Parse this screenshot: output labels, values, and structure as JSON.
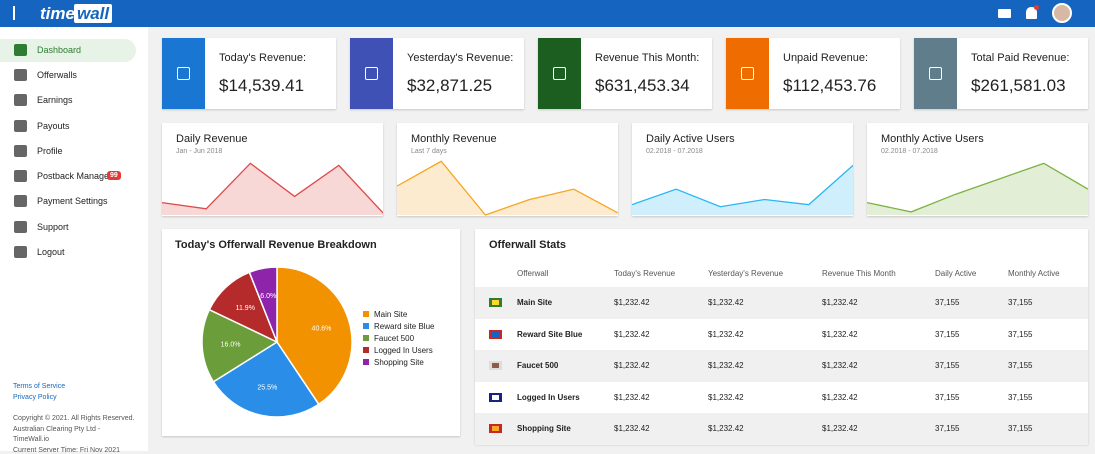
{
  "header": {
    "logo_part1": "time",
    "logo_part2": "wall"
  },
  "sidebar": {
    "nav": [
      {
        "label": "Dashboard"
      },
      {
        "label": "Offerwalls"
      },
      {
        "label": "Earnings"
      },
      {
        "label": "Payouts"
      },
      {
        "label": "Profile"
      },
      {
        "label": "Postback Manager",
        "badge": "99"
      },
      {
        "label": "Payment Settings"
      },
      {
        "label": "Support"
      },
      {
        "label": "Logout"
      }
    ],
    "links": [
      "Terms of Service",
      "Privacy Policy"
    ],
    "footer_lines": [
      "Copyright © 2021. All Rights Reserved.",
      "Australian Clearing Pty Ltd -",
      "TimeWall.io",
      "Current Server Time: Fri Nov 2021"
    ]
  },
  "stat_cards": [
    {
      "title": "Today's Revenue:",
      "value": "$14,539.41",
      "color": "#1976d2"
    },
    {
      "title": "Yesterday's Revenue:",
      "value": "$32,871.25",
      "color": "#3f51b5"
    },
    {
      "title": "Revenue This Month:",
      "value": "$631,453.34",
      "color": "#1b5e20"
    },
    {
      "title": "Unpaid Revenue:",
      "value": "$112,453.76",
      "color": "#ef6c00"
    },
    {
      "title": "Total Paid Revenue:",
      "value": "$261,581.03",
      "color": "#607d8b"
    }
  ],
  "chart_data": [
    {
      "type": "area",
      "title": "Daily Revenue",
      "subtitle": "Jan - Jun 2018",
      "color": "#e04848",
      "values": [
        12,
        6,
        50,
        18,
        48,
        2
      ],
      "ylim": [
        0,
        60
      ]
    },
    {
      "type": "area",
      "title": "Monthly Revenue",
      "subtitle": "Last 7 days",
      "color": "#f5a623",
      "values": [
        28,
        52,
        0,
        15,
        25,
        2
      ],
      "ylim": [
        0,
        60
      ]
    },
    {
      "type": "area",
      "title": "Daily Active Users",
      "subtitle": "02.2018 - 07.2018",
      "color": "#29b6f6",
      "values": [
        10,
        25,
        8,
        15,
        10,
        48
      ],
      "ylim": [
        0,
        60
      ]
    },
    {
      "type": "area",
      "title": "Monthly Active Users",
      "subtitle": "02.2018 - 07.2018",
      "color": "#7cb342",
      "values": [
        12,
        3,
        20,
        35,
        50,
        25
      ],
      "ylim": [
        0,
        60
      ]
    },
    {
      "type": "pie",
      "title": "Today's Offerwall Revenue Breakdown",
      "categories": [
        "Main Site",
        "Reward site Blue",
        "Faucet 500",
        "Logged In Users",
        "Shopping Site"
      ],
      "values": [
        40.6,
        25.5,
        16.0,
        11.9,
        6.0
      ],
      "value_labels": [
        "40.6%",
        "25.5%",
        "16.0%",
        "11.9%",
        "6.0%"
      ],
      "colors": [
        "#f39200",
        "#2a8ee8",
        "#6b9e3a",
        "#b52a2a",
        "#8e24aa"
      ]
    }
  ],
  "stats_table": {
    "title": "Offerwall Stats",
    "columns": [
      "Offerwall",
      "Today's Revenue",
      "Yesterday's Revenue",
      "Revenue This Month",
      "Daily Active",
      "Monthly Active"
    ],
    "rows": [
      [
        "Main Site",
        "$1,232.42",
        "$1,232.42",
        "$1,232.42",
        "37,155",
        "37,155"
      ],
      [
        "Reward Site Blue",
        "$1,232.42",
        "$1,232.42",
        "$1,232.42",
        "37,155",
        "37,155"
      ],
      [
        "Faucet 500",
        "$1,232.42",
        "$1,232.42",
        "$1,232.42",
        "37,155",
        "37,155"
      ],
      [
        "Logged In Users",
        "$1,232.42",
        "$1,232.42",
        "$1,232.42",
        "37,155",
        "37,155"
      ],
      [
        "Shopping Site",
        "$1,232.42",
        "$1,232.42",
        "$1,232.42",
        "37,155",
        "37,155"
      ]
    ]
  }
}
